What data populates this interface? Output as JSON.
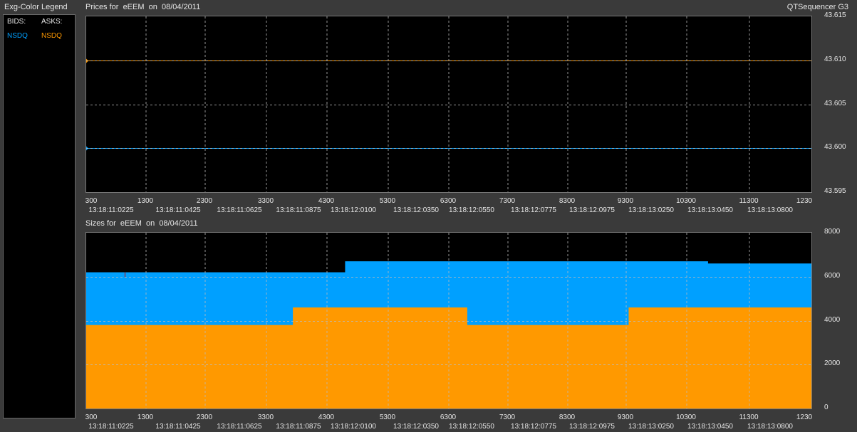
{
  "legend": {
    "title": "Exg-Color Legend",
    "bids_label": "BIDS:",
    "asks_label": "ASKS:",
    "bid_exchange": "NSDQ",
    "ask_exchange": "NSDQ"
  },
  "app_title": "QTSequencer G3",
  "colors": {
    "bid": "#00a0ff",
    "ask": "#ff9900",
    "background": "#000000",
    "grid": "#bbbbbb",
    "frame": "#3a3a3a"
  },
  "chart_data": [
    {
      "type": "line",
      "title": "Prices for  eEEM  on  08/04/2011",
      "x_ticks": [
        "300",
        "1300",
        "2300",
        "3300",
        "4300",
        "5300",
        "6300",
        "7300",
        "8300",
        "9300",
        "10300",
        "11300",
        "1230"
      ],
      "time_ticks": [
        "13:18:11:0225",
        "13:18:11:0425",
        "13:18:11:0625",
        "13:18:11:0875",
        "13:18:12:0100",
        "13:18:12:0350",
        "13:18:12:0550",
        "13:18:12:0775",
        "13:18:12:0975",
        "13:18:13:0250",
        "13:18:13:0450",
        "13:18:13:0800"
      ],
      "y_ticks": [
        "43.615",
        "43.610",
        "43.605",
        "43.600",
        "43.595"
      ],
      "ylim": [
        43.595,
        43.615
      ],
      "grid": true,
      "series": [
        {
          "name": "ASKS: NSDQ",
          "values": [
            43.61
          ]
        },
        {
          "name": "BIDS: NSDQ",
          "values": [
            43.6
          ]
        }
      ]
    },
    {
      "type": "area",
      "title": "Sizes for  eEEM  on  08/04/2011",
      "x_ticks": [
        "300",
        "1300",
        "2300",
        "3300",
        "4300",
        "5300",
        "6300",
        "7300",
        "8300",
        "9300",
        "10300",
        "11300",
        "1230"
      ],
      "time_ticks": [
        "13:18:11:0225",
        "13:18:11:0425",
        "13:18:11:0625",
        "13:18:11:0875",
        "13:18:12:0100",
        "13:18:12:0350",
        "13:18:12:0550",
        "13:18:12:0775",
        "13:18:12:0975",
        "13:18:13:0250",
        "13:18:13:0450",
        "13:18:13:0800"
      ],
      "y_ticks": [
        "8000",
        "6000",
        "4000",
        "2000",
        "0"
      ],
      "ylim": [
        0,
        8000
      ],
      "grid": true,
      "series": [
        {
          "name": "ASKS: NSDQ",
          "segments": [
            [
              0,
              0.285,
              3800
            ],
            [
              0.285,
              0.525,
              4600
            ],
            [
              0.525,
              0.748,
              3800
            ],
            [
              0.748,
              1,
              4600
            ]
          ]
        },
        {
          "name": "BIDS: NSDQ",
          "segments": [
            [
              0,
              0.357,
              6200
            ],
            [
              0.357,
              0.857,
              6700
            ],
            [
              0.857,
              1,
              6600
            ]
          ]
        }
      ]
    }
  ]
}
